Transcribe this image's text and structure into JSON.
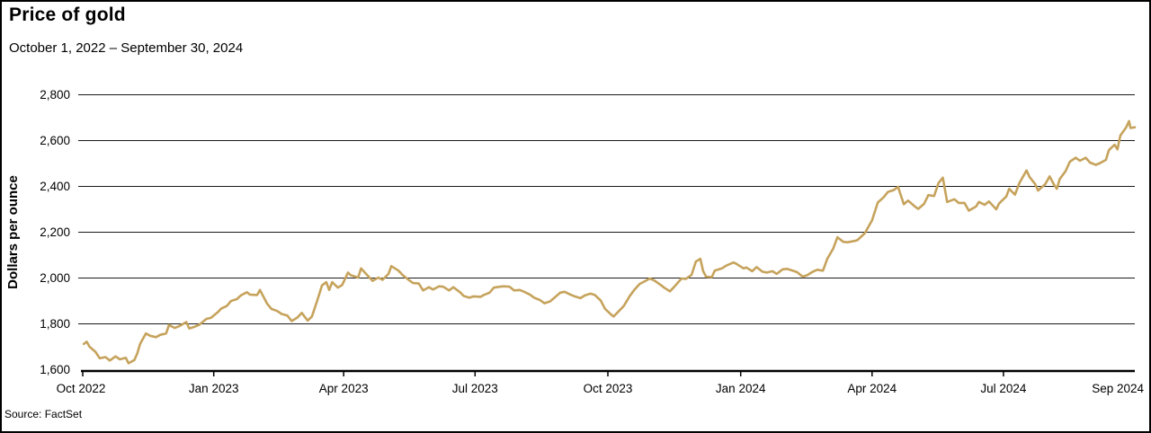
{
  "header": {
    "title": "Price of gold",
    "subtitle": "October 1, 2022 – September 30, 2024"
  },
  "footer": {
    "source": "Source: FactSet"
  },
  "chart_data": {
    "type": "line",
    "title": "Price of gold",
    "subtitle": "October 1, 2022 – September 30, 2024",
    "source": "Source: FactSet",
    "ylabel": "Dollars per ounce",
    "xlabel": "",
    "ylim": [
      1600,
      2800
    ],
    "xlim": [
      "2022-10-01",
      "2024-09-30"
    ],
    "grid": "horizontal",
    "legend": "none",
    "line_color": "#C6A35C",
    "axis_color": "#000000",
    "yticks": [
      {
        "value": 1600,
        "label": "1,600"
      },
      {
        "value": 1800,
        "label": "1,800"
      },
      {
        "value": 2000,
        "label": "2,000"
      },
      {
        "value": 2200,
        "label": "2,200"
      },
      {
        "value": 2400,
        "label": "2,400"
      },
      {
        "value": 2600,
        "label": "2,600"
      },
      {
        "value": 2800,
        "label": "2,800"
      }
    ],
    "xticks": [
      {
        "date": "2022-10-01",
        "label": "Oct 2022"
      },
      {
        "date": "2023-01-01",
        "label": "Jan 2023"
      },
      {
        "date": "2023-04-01",
        "label": "Apr 2023"
      },
      {
        "date": "2023-07-01",
        "label": "Jul 2023"
      },
      {
        "date": "2023-10-01",
        "label": "Oct 2023"
      },
      {
        "date": "2024-01-01",
        "label": "Jan 2024"
      },
      {
        "date": "2024-04-01",
        "label": "Apr 2024"
      },
      {
        "date": "2024-07-01",
        "label": "Jul 2024"
      },
      {
        "date": "2024-09-30",
        "label": "Sep 2024"
      }
    ],
    "series": [
      {
        "name": "Gold price (dollars per ounce)",
        "points": [
          [
            "2022-10-03",
            1712
          ],
          [
            "2022-10-05",
            1722
          ],
          [
            "2022-10-07",
            1700
          ],
          [
            "2022-10-11",
            1678
          ],
          [
            "2022-10-14",
            1650
          ],
          [
            "2022-10-18",
            1655
          ],
          [
            "2022-10-21",
            1640
          ],
          [
            "2022-10-25",
            1658
          ],
          [
            "2022-10-28",
            1645
          ],
          [
            "2022-11-01",
            1652
          ],
          [
            "2022-11-03",
            1628
          ],
          [
            "2022-11-07",
            1642
          ],
          [
            "2022-11-09",
            1670
          ],
          [
            "2022-11-11",
            1712
          ],
          [
            "2022-11-15",
            1758
          ],
          [
            "2022-11-18",
            1748
          ],
          [
            "2022-11-22",
            1742
          ],
          [
            "2022-11-25",
            1752
          ],
          [
            "2022-11-29",
            1758
          ],
          [
            "2022-12-01",
            1795
          ],
          [
            "2022-12-05",
            1782
          ],
          [
            "2022-12-08",
            1790
          ],
          [
            "2022-12-13",
            1808
          ],
          [
            "2022-12-15",
            1780
          ],
          [
            "2022-12-19",
            1788
          ],
          [
            "2022-12-22",
            1796
          ],
          [
            "2022-12-27",
            1822
          ],
          [
            "2022-12-30",
            1826
          ],
          [
            "2023-01-04",
            1852
          ],
          [
            "2023-01-06",
            1866
          ],
          [
            "2023-01-10",
            1878
          ],
          [
            "2023-01-13",
            1900
          ],
          [
            "2023-01-17",
            1908
          ],
          [
            "2023-01-20",
            1925
          ],
          [
            "2023-01-24",
            1938
          ],
          [
            "2023-01-26",
            1928
          ],
          [
            "2023-01-31",
            1926
          ],
          [
            "2023-02-02",
            1948
          ],
          [
            "2023-02-07",
            1888
          ],
          [
            "2023-02-10",
            1865
          ],
          [
            "2023-02-14",
            1856
          ],
          [
            "2023-02-17",
            1843
          ],
          [
            "2023-02-21",
            1836
          ],
          [
            "2023-02-24",
            1812
          ],
          [
            "2023-02-28",
            1828
          ],
          [
            "2023-03-03",
            1848
          ],
          [
            "2023-03-07",
            1814
          ],
          [
            "2023-03-10",
            1832
          ],
          [
            "2023-03-14",
            1908
          ],
          [
            "2023-03-17",
            1968
          ],
          [
            "2023-03-20",
            1982
          ],
          [
            "2023-03-22",
            1948
          ],
          [
            "2023-03-24",
            1982
          ],
          [
            "2023-03-28",
            1958
          ],
          [
            "2023-03-31",
            1970
          ],
          [
            "2023-04-04",
            2024
          ],
          [
            "2023-04-06",
            2012
          ],
          [
            "2023-04-11",
            2002
          ],
          [
            "2023-04-13",
            2042
          ],
          [
            "2023-04-18",
            2008
          ],
          [
            "2023-04-21",
            1988
          ],
          [
            "2023-04-25",
            2002
          ],
          [
            "2023-04-28",
            1992
          ],
          [
            "2023-05-02",
            2018
          ],
          [
            "2023-05-04",
            2052
          ],
          [
            "2023-05-09",
            2032
          ],
          [
            "2023-05-12",
            2012
          ],
          [
            "2023-05-16",
            1992
          ],
          [
            "2023-05-19",
            1978
          ],
          [
            "2023-05-23",
            1976
          ],
          [
            "2023-05-26",
            1946
          ],
          [
            "2023-05-30",
            1960
          ],
          [
            "2023-06-02",
            1950
          ],
          [
            "2023-06-06",
            1964
          ],
          [
            "2023-06-09",
            1962
          ],
          [
            "2023-06-13",
            1946
          ],
          [
            "2023-06-16",
            1960
          ],
          [
            "2023-06-21",
            1936
          ],
          [
            "2023-06-23",
            1922
          ],
          [
            "2023-06-27",
            1914
          ],
          [
            "2023-06-30",
            1920
          ],
          [
            "2023-07-05",
            1918
          ],
          [
            "2023-07-07",
            1926
          ],
          [
            "2023-07-11",
            1936
          ],
          [
            "2023-07-14",
            1958
          ],
          [
            "2023-07-18",
            1962
          ],
          [
            "2023-07-21",
            1964
          ],
          [
            "2023-07-25",
            1962
          ],
          [
            "2023-07-28",
            1946
          ],
          [
            "2023-08-01",
            1948
          ],
          [
            "2023-08-04",
            1940
          ],
          [
            "2023-08-08",
            1928
          ],
          [
            "2023-08-11",
            1914
          ],
          [
            "2023-08-15",
            1904
          ],
          [
            "2023-08-18",
            1890
          ],
          [
            "2023-08-22",
            1898
          ],
          [
            "2023-08-25",
            1914
          ],
          [
            "2023-08-29",
            1936
          ],
          [
            "2023-09-01",
            1940
          ],
          [
            "2023-09-05",
            1928
          ],
          [
            "2023-09-08",
            1920
          ],
          [
            "2023-09-12",
            1912
          ],
          [
            "2023-09-15",
            1924
          ],
          [
            "2023-09-19",
            1932
          ],
          [
            "2023-09-22",
            1926
          ],
          [
            "2023-09-26",
            1902
          ],
          [
            "2023-09-29",
            1866
          ],
          [
            "2023-10-03",
            1842
          ],
          [
            "2023-10-05",
            1832
          ],
          [
            "2023-10-09",
            1858
          ],
          [
            "2023-10-12",
            1878
          ],
          [
            "2023-10-16",
            1920
          ],
          [
            "2023-10-19",
            1946
          ],
          [
            "2023-10-23",
            1974
          ],
          [
            "2023-10-26",
            1984
          ],
          [
            "2023-10-30",
            1998
          ],
          [
            "2023-11-02",
            1990
          ],
          [
            "2023-11-07",
            1968
          ],
          [
            "2023-11-09",
            1958
          ],
          [
            "2023-11-13",
            1942
          ],
          [
            "2023-11-16",
            1962
          ],
          [
            "2023-11-21",
            1998
          ],
          [
            "2023-11-24",
            1996
          ],
          [
            "2023-11-28",
            2014
          ],
          [
            "2023-12-01",
            2072
          ],
          [
            "2023-12-04",
            2084
          ],
          [
            "2023-12-06",
            2030
          ],
          [
            "2023-12-08",
            2006
          ],
          [
            "2023-12-12",
            2004
          ],
          [
            "2023-12-14",
            2032
          ],
          [
            "2023-12-19",
            2042
          ],
          [
            "2023-12-22",
            2054
          ],
          [
            "2023-12-27",
            2068
          ],
          [
            "2023-12-29",
            2062
          ],
          [
            "2024-01-03",
            2042
          ],
          [
            "2024-01-05",
            2046
          ],
          [
            "2024-01-09",
            2030
          ],
          [
            "2024-01-12",
            2048
          ],
          [
            "2024-01-16",
            2028
          ],
          [
            "2024-01-19",
            2024
          ],
          [
            "2024-01-23",
            2030
          ],
          [
            "2024-01-26",
            2018
          ],
          [
            "2024-01-30",
            2038
          ],
          [
            "2024-02-02",
            2040
          ],
          [
            "2024-02-06",
            2032
          ],
          [
            "2024-02-09",
            2026
          ],
          [
            "2024-02-13",
            2006
          ],
          [
            "2024-02-16",
            2012
          ],
          [
            "2024-02-20",
            2028
          ],
          [
            "2024-02-23",
            2036
          ],
          [
            "2024-02-27",
            2032
          ],
          [
            "2024-03-01",
            2084
          ],
          [
            "2024-03-05",
            2128
          ],
          [
            "2024-03-08",
            2178
          ],
          [
            "2024-03-12",
            2158
          ],
          [
            "2024-03-15",
            2156
          ],
          [
            "2024-03-20",
            2162
          ],
          [
            "2024-03-22",
            2166
          ],
          [
            "2024-03-27",
            2196
          ],
          [
            "2024-04-01",
            2252
          ],
          [
            "2024-04-05",
            2330
          ],
          [
            "2024-04-09",
            2352
          ],
          [
            "2024-04-12",
            2376
          ],
          [
            "2024-04-16",
            2384
          ],
          [
            "2024-04-19",
            2398
          ],
          [
            "2024-04-23",
            2322
          ],
          [
            "2024-04-26",
            2338
          ],
          [
            "2024-05-01",
            2310
          ],
          [
            "2024-05-03",
            2302
          ],
          [
            "2024-05-07",
            2324
          ],
          [
            "2024-05-10",
            2362
          ],
          [
            "2024-05-14",
            2358
          ],
          [
            "2024-05-17",
            2415
          ],
          [
            "2024-05-20",
            2438
          ],
          [
            "2024-05-23",
            2332
          ],
          [
            "2024-05-28",
            2344
          ],
          [
            "2024-05-31",
            2328
          ],
          [
            "2024-06-04",
            2328
          ],
          [
            "2024-06-07",
            2294
          ],
          [
            "2024-06-12",
            2312
          ],
          [
            "2024-06-14",
            2332
          ],
          [
            "2024-06-18",
            2320
          ],
          [
            "2024-06-21",
            2334
          ],
          [
            "2024-06-26",
            2300
          ],
          [
            "2024-06-28",
            2326
          ],
          [
            "2024-07-03",
            2356
          ],
          [
            "2024-07-05",
            2390
          ],
          [
            "2024-07-09",
            2364
          ],
          [
            "2024-07-12",
            2414
          ],
          [
            "2024-07-17",
            2470
          ],
          [
            "2024-07-19",
            2442
          ],
          [
            "2024-07-23",
            2410
          ],
          [
            "2024-07-25",
            2382
          ],
          [
            "2024-07-30",
            2410
          ],
          [
            "2024-08-02",
            2444
          ],
          [
            "2024-08-05",
            2408
          ],
          [
            "2024-08-07",
            2390
          ],
          [
            "2024-08-09",
            2432
          ],
          [
            "2024-08-13",
            2466
          ],
          [
            "2024-08-16",
            2508
          ],
          [
            "2024-08-20",
            2525
          ],
          [
            "2024-08-23",
            2512
          ],
          [
            "2024-08-27",
            2525
          ],
          [
            "2024-08-30",
            2504
          ],
          [
            "2024-09-03",
            2494
          ],
          [
            "2024-09-06",
            2502
          ],
          [
            "2024-09-10",
            2516
          ],
          [
            "2024-09-12",
            2558
          ],
          [
            "2024-09-16",
            2582
          ],
          [
            "2024-09-18",
            2562
          ],
          [
            "2024-09-20",
            2622
          ],
          [
            "2024-09-24",
            2658
          ],
          [
            "2024-09-26",
            2685
          ],
          [
            "2024-09-27",
            2655
          ],
          [
            "2024-09-30",
            2658
          ]
        ]
      }
    ]
  }
}
